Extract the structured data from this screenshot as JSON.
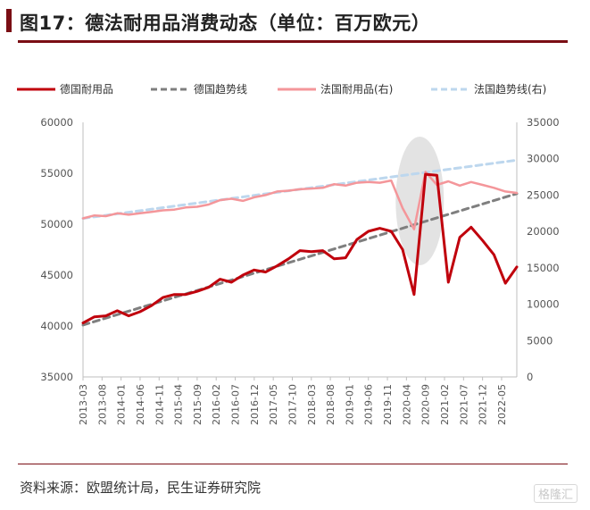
{
  "title": "图17：德法耐用品消费动态（单位：百万欧元）",
  "source": "资料来源：欧盟统计局，民生证券研究院",
  "watermark": "格隆汇",
  "colors": {
    "germany": "#c0000c",
    "germany_trend": "#7f7f7f",
    "france": "#f4969a",
    "france_trend": "#bdd7ee",
    "brand": "#7a0e14",
    "highlight": "#d9d9d9"
  },
  "chart_data": {
    "type": "line",
    "x_tick_labels": [
      "2013-03",
      "2013-08",
      "2014-01",
      "2014-06",
      "2014-11",
      "2015-04",
      "2015-09",
      "2016-02",
      "2016-07",
      "2016-12",
      "2017-05",
      "2017-10",
      "2018-03",
      "2018-08",
      "2019-01",
      "2019-06",
      "2019-11",
      "2020-04",
      "2020-09",
      "2021-02",
      "2021-07",
      "2021-12",
      "2022-05"
    ],
    "x_range": [
      "2013-03",
      "2022-09"
    ],
    "y_left": {
      "min": 35000,
      "max": 60000,
      "ticks": [
        35000,
        40000,
        45000,
        50000,
        55000,
        60000
      ]
    },
    "y_right": {
      "min": 0,
      "max": 35000,
      "ticks": [
        0,
        5000,
        10000,
        15000,
        20000,
        25000,
        30000,
        35000
      ]
    },
    "grid": false,
    "legend_position": "top",
    "series": [
      {
        "name": "德国耐用品",
        "axis": "left",
        "style": "solid",
        "x": [
          "2013-03",
          "2013-06",
          "2013-09",
          "2013-12",
          "2014-03",
          "2014-06",
          "2014-09",
          "2014-12",
          "2015-03",
          "2015-06",
          "2015-09",
          "2015-12",
          "2016-03",
          "2016-06",
          "2016-09",
          "2016-12",
          "2017-03",
          "2017-06",
          "2017-09",
          "2017-12",
          "2018-03",
          "2018-06",
          "2018-09",
          "2018-12",
          "2019-03",
          "2019-06",
          "2019-09",
          "2019-12",
          "2020-03",
          "2020-06",
          "2020-09",
          "2020-12",
          "2021-03",
          "2021-06",
          "2021-09",
          "2021-12",
          "2022-03",
          "2022-06",
          "2022-09"
        ],
        "values": [
          40300,
          40900,
          41000,
          41500,
          41000,
          41400,
          42000,
          42800,
          43100,
          43100,
          43400,
          43800,
          44600,
          44300,
          45000,
          45500,
          45300,
          45900,
          46600,
          47400,
          47300,
          47400,
          46600,
          46700,
          48500,
          49300,
          49600,
          49300,
          47500,
          43100,
          54900,
          54800,
          44300,
          48700,
          49700,
          48400,
          47000,
          44200,
          45800
        ]
      },
      {
        "name": "德国趋势线",
        "axis": "left",
        "style": "dashed",
        "x": [
          "2013-03",
          "2022-09"
        ],
        "values": [
          40100,
          53000
        ]
      },
      {
        "name": "法国耐用品(右)",
        "axis": "right",
        "style": "solid",
        "x": [
          "2013-03",
          "2013-06",
          "2013-09",
          "2013-12",
          "2014-03",
          "2014-06",
          "2014-09",
          "2014-12",
          "2015-03",
          "2015-06",
          "2015-09",
          "2015-12",
          "2016-03",
          "2016-06",
          "2016-09",
          "2016-12",
          "2017-03",
          "2017-06",
          "2017-09",
          "2017-12",
          "2018-03",
          "2018-06",
          "2018-09",
          "2018-12",
          "2019-03",
          "2019-06",
          "2019-09",
          "2019-12",
          "2020-03",
          "2020-06",
          "2020-09",
          "2020-12",
          "2021-03",
          "2021-06",
          "2021-09",
          "2021-12",
          "2022-03",
          "2022-06",
          "2022-09"
        ],
        "values": [
          21800,
          22200,
          22100,
          22500,
          22300,
          22500,
          22700,
          22900,
          23000,
          23300,
          23400,
          23700,
          24300,
          24500,
          24200,
          24700,
          25000,
          25500,
          25600,
          25800,
          25900,
          26000,
          26500,
          26300,
          26700,
          26800,
          26700,
          27000,
          23200,
          20300,
          28200,
          26400,
          26900,
          26300,
          26800,
          26400,
          26000,
          25500,
          25300
        ]
      },
      {
        "name": "法国趋势线(右)",
        "axis": "right",
        "style": "dashed",
        "x": [
          "2013-03",
          "2022-09"
        ],
        "values": [
          21800,
          29800
        ]
      }
    ]
  }
}
